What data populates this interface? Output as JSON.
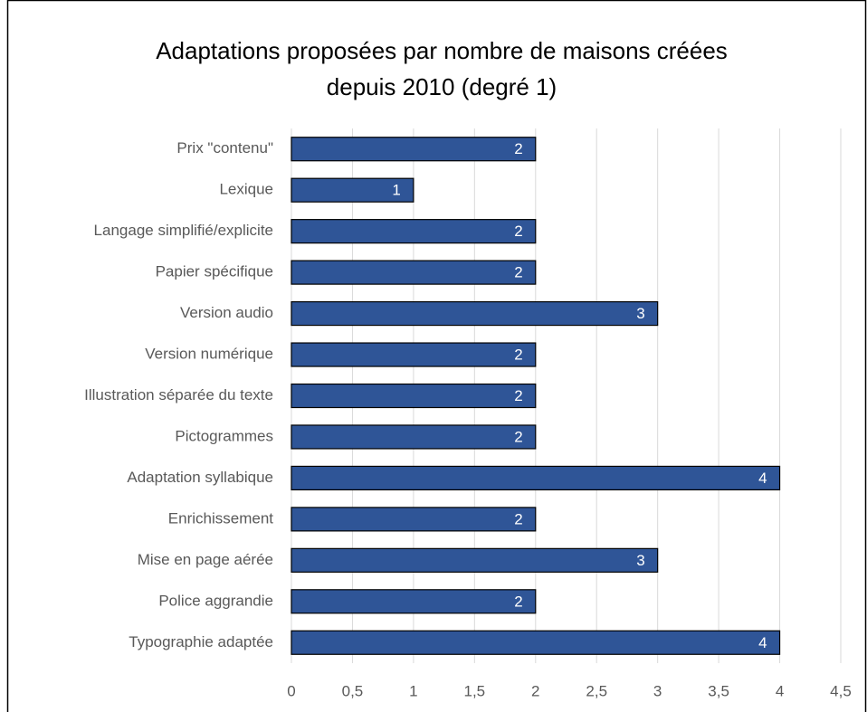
{
  "chart_data": {
    "type": "bar",
    "orientation": "horizontal",
    "title": [
      "Adaptations proposées par nombre de maisons créées",
      "depuis 2010 (degré 1)"
    ],
    "categories": [
      "Prix \"contenu\"",
      "Lexique",
      "Langage simplifié/explicite",
      "Papier spécifique",
      "Version audio",
      "Version numérique",
      "Illustration séparée du texte",
      "Pictogrammes",
      "Adaptation syllabique",
      "Enrichissement",
      "Mise en page aérée",
      "Police aggrandie",
      "Typographie adaptée"
    ],
    "values": [
      2,
      1,
      2,
      2,
      3,
      2,
      2,
      2,
      4,
      2,
      3,
      2,
      4
    ],
    "color": "#2f5597",
    "xlim": [
      0,
      4.5
    ],
    "xticks": [
      0,
      {
        "value": 0.5,
        "label": "0,5"
      },
      1,
      {
        "value": 1.5,
        "label": "1,5"
      },
      2,
      {
        "value": 2.5,
        "label": "2,5"
      },
      3,
      {
        "value": 3.5,
        "label": "3,5"
      },
      4,
      {
        "value": 4.5,
        "label": "4,5"
      }
    ],
    "grid": true
  }
}
